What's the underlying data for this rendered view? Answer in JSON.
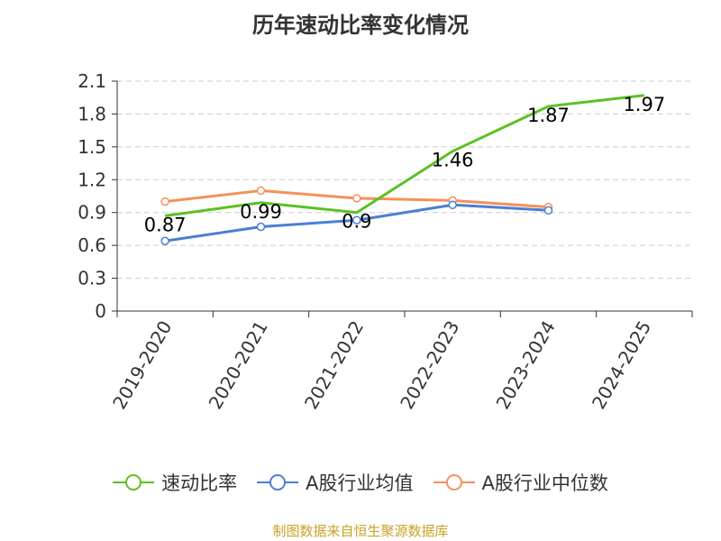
{
  "chart_data": {
    "type": "line",
    "title": "历年速动比率变化情况",
    "categories": [
      "2019-2020",
      "2020-2021",
      "2021-2022",
      "2022-2023",
      "2023-2024",
      "2024-2025"
    ],
    "yticks": [
      "0",
      "0.3",
      "0.6",
      "0.9",
      "1.2",
      "1.5",
      "1.8",
      "2.1"
    ],
    "ylim": [
      0,
      2.1
    ],
    "grid": true,
    "legend_position": "bottom",
    "series": [
      {
        "name": "速动比率",
        "color": "#5cc024",
        "values": [
          0.87,
          0.99,
          0.9,
          1.46,
          1.87,
          1.97
        ],
        "labels": [
          "0.87",
          "0.99",
          "0.9",
          "1.46",
          "1.87",
          "1.97"
        ],
        "markers": false
      },
      {
        "name": "A股行业均值",
        "color": "#4a7fd6",
        "values": [
          0.64,
          0.77,
          0.83,
          0.97,
          0.92,
          null
        ],
        "markers": true
      },
      {
        "name": "A股行业中位数",
        "color": "#f5905a",
        "values": [
          1.0,
          1.1,
          1.03,
          1.01,
          0.95,
          null
        ],
        "markers": true
      }
    ],
    "source": "制图数据来自恒生聚源数据库"
  }
}
